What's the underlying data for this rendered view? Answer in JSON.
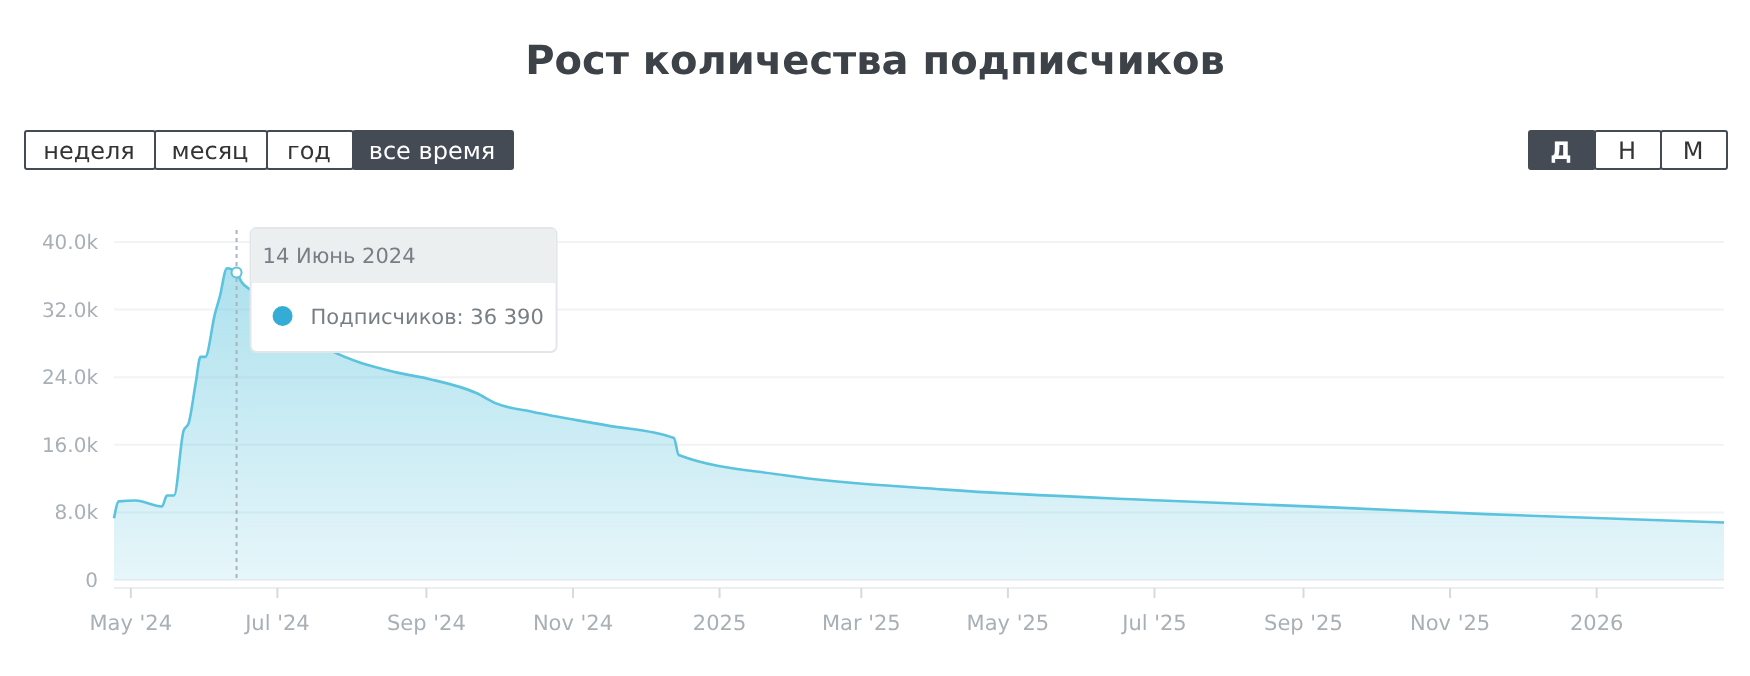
{
  "chart_data": {
    "type": "area",
    "title": "Рост количества подписчиков",
    "x": [
      "2024-04-24",
      "2024-04-26",
      "2024-05-03",
      "2024-05-14",
      "2024-05-16",
      "2024-05-19",
      "2024-05-23",
      "2024-05-25",
      "2024-05-28",
      "2024-05-30",
      "2024-06-01",
      "2024-06-05",
      "2024-06-07",
      "2024-06-10",
      "2024-06-14",
      "2024-06-16",
      "2024-06-20",
      "2024-07-23",
      "2024-08-19",
      "2024-09-02",
      "2024-09-22",
      "2024-09-30",
      "2024-10-15",
      "2024-11-15",
      "2024-12-13",
      "2024-12-15",
      "2025-01-28",
      "2025-04-05",
      "2025-07-04",
      "2025-09-13",
      "2025-11-16",
      "2026-02-23"
    ],
    "series": [
      {
        "color": "#5bc3dd",
        "values": [
          7300,
          9300,
          9400,
          8700,
          10000,
          10000,
          17700,
          18500,
          23300,
          26400,
          26400,
          31500,
          33500,
          36900,
          36390,
          35300,
          34300,
          27200,
          24600,
          23800,
          22100,
          20900,
          19900,
          18300,
          16800,
          14800,
          12400,
          10700,
          9400,
          8600,
          7800,
          6800
        ]
      }
    ],
    "xlim": [
      "2024-04-24",
      "2026-02-23"
    ],
    "xticks": [
      {
        "value": "2024-05-01",
        "label": "May '24"
      },
      {
        "value": "2024-07-01",
        "label": "Jul '24"
      },
      {
        "value": "2024-09-01",
        "label": "Sep '24"
      },
      {
        "value": "2024-11-01",
        "label": "Nov '24"
      },
      {
        "value": "2025-01-01",
        "label": "2025"
      },
      {
        "value": "2025-03-01",
        "label": "Mar '25"
      },
      {
        "value": "2025-05-01",
        "label": "May '25"
      },
      {
        "value": "2025-07-01",
        "label": "Jul '25"
      },
      {
        "value": "2025-09-01",
        "label": "Sep '25"
      },
      {
        "value": "2025-11-01",
        "label": "Nov '25"
      },
      {
        "value": "2026-01-01",
        "label": "2026"
      }
    ],
    "ylim": [
      0,
      40000
    ],
    "yticks": [
      0,
      {
        "value": 8000,
        "label": "8.0k"
      },
      {
        "value": 16000,
        "label": "16.0k"
      },
      {
        "value": 24000,
        "label": "24.0k"
      },
      {
        "value": 32000,
        "label": "32.0k"
      },
      {
        "value": 40000,
        "label": "40.0k"
      }
    ],
    "grid": "y",
    "ref_lines": [
      {
        "axis": "x",
        "value": "2024-06-14",
        "line_style": "dotted",
        "color": "#aab4bc"
      }
    ],
    "annotations": [
      {
        "text": "14 Июнь 2024",
        "x": "2024-06-14",
        "y": 36390
      },
      "Подписчиков: 36 390",
      "неделя",
      "месяц",
      "год",
      "все время",
      "Д",
      "Н",
      "М"
    ]
  }
}
